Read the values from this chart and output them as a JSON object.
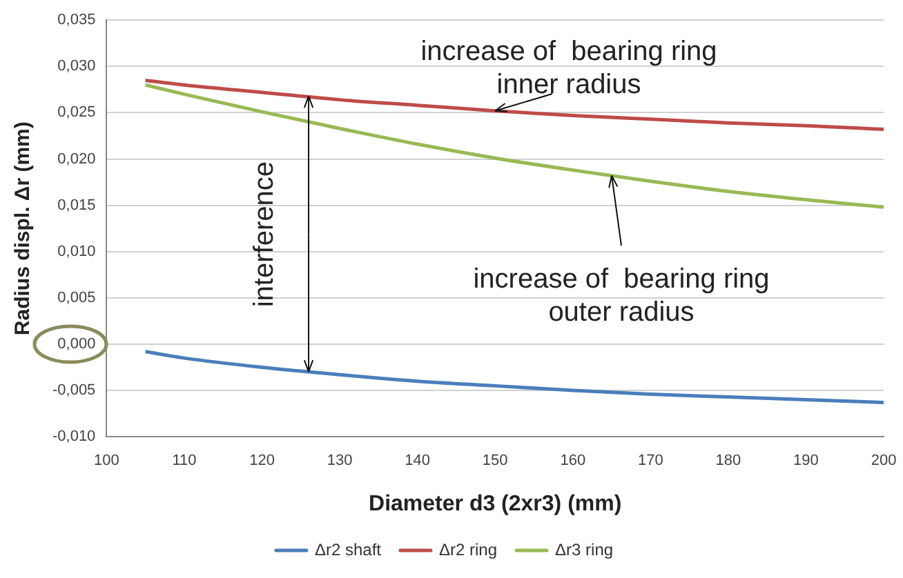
{
  "chart_data": {
    "type": "line",
    "xlabel": "Diameter d3 (2xr3) (mm)",
    "ylabel": "Radius displ. Δr (mm)",
    "x": [
      105,
      110,
      120,
      130,
      140,
      150,
      160,
      170,
      180,
      190,
      200
    ],
    "series": [
      {
        "name": "Δr2 shaft",
        "color": "#4a7ebb",
        "values": [
          -0.0008,
          -0.0015,
          -0.0025,
          -0.0033,
          -0.004,
          -0.0045,
          -0.005,
          -0.0054,
          -0.0057,
          -0.006,
          -0.0063
        ]
      },
      {
        "name": "Δr2 ring",
        "color": "#be4b48",
        "values": [
          0.0285,
          0.028,
          0.0272,
          0.0264,
          0.0258,
          0.0252,
          0.0247,
          0.0243,
          0.0239,
          0.0236,
          0.0232
        ]
      },
      {
        "name": "Δr3 ring",
        "color": "#98b954",
        "values": [
          0.028,
          0.027,
          0.0251,
          0.0233,
          0.0216,
          0.0201,
          0.0188,
          0.0176,
          0.0165,
          0.0156,
          0.0148
        ]
      }
    ],
    "xlim": [
      100,
      200
    ],
    "xticks": [
      100,
      110,
      120,
      130,
      140,
      150,
      160,
      170,
      180,
      190,
      200
    ],
    "ylim": [
      -0.01,
      0.035
    ],
    "yticks": [
      {
        "value": -0.01,
        "label": "-0,010"
      },
      {
        "value": -0.005,
        "label": "-0,005"
      },
      {
        "value": 0,
        "label": "0,000"
      },
      {
        "value": 0.005,
        "label": "0,005"
      },
      {
        "value": 0.01,
        "label": "0,010"
      },
      {
        "value": 0.015,
        "label": "0,015"
      },
      {
        "value": 0.02,
        "label": "0,020"
      },
      {
        "value": 0.025,
        "label": "0,025"
      },
      {
        "value": 0.03,
        "label": "0,030"
      },
      {
        "value": 0.035,
        "label": "0,035"
      }
    ],
    "grid": "y",
    "legend": "bottom",
    "marker": "none",
    "line_style": "solid",
    "annotations": [
      {
        "text": "increase of  bearing ring inner radius",
        "x": 150,
        "y": 0.0252
      },
      {
        "text": "increase of  bearing ring outer radius",
        "x": 165,
        "y": 0.0182
      },
      {
        "text": "interference",
        "x": 126,
        "y": 0.0268
      }
    ]
  }
}
